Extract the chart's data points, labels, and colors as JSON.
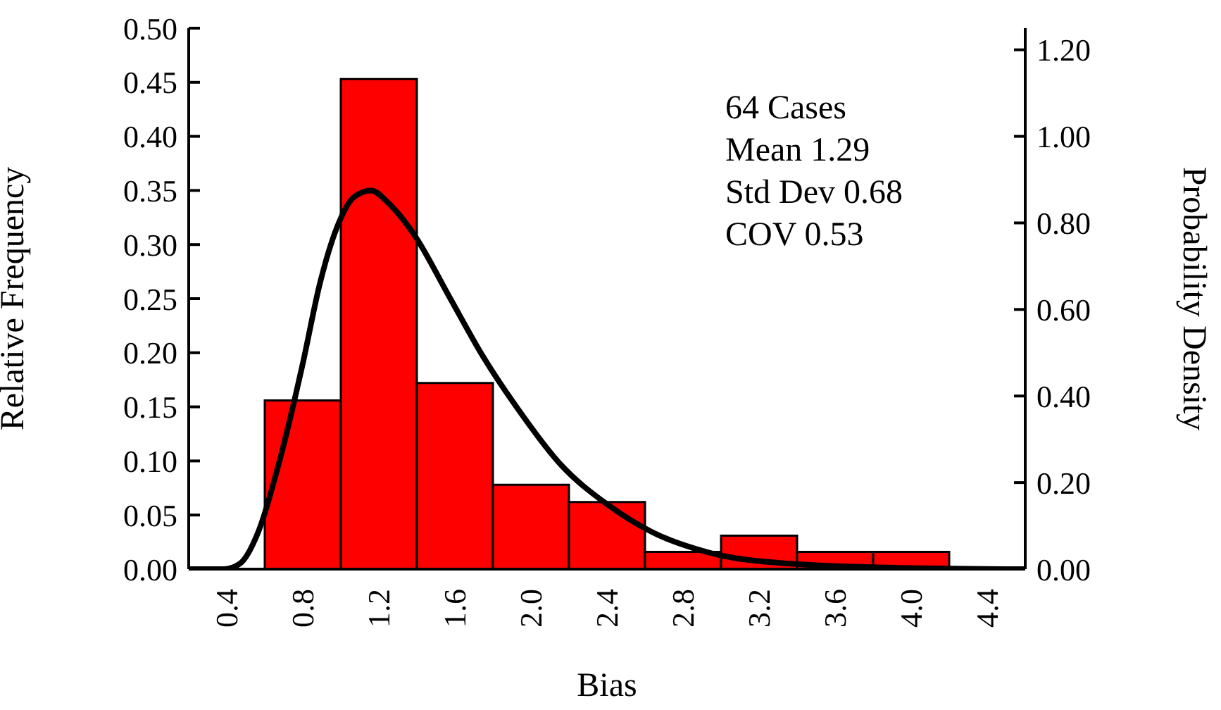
{
  "chart_data": {
    "type": "histogram",
    "xlabel": "Bias",
    "ylabel": "Relative Frequency",
    "y2label": "Probability Density",
    "bins": [
      0.6,
      1.0,
      1.4,
      1.8,
      2.2,
      2.6,
      3.0,
      3.4,
      3.8,
      4.2
    ],
    "values": [
      0.156,
      0.453,
      0.172,
      0.078,
      0.062,
      0.016,
      0.031,
      0.016,
      0.016
    ],
    "color": "#ff0000",
    "series": [
      {
        "type": "line",
        "axis": "y2",
        "color": "#000000",
        "x": [
          0.2,
          0.385,
          0.47,
          0.565,
          0.68,
          0.8,
          0.89,
          0.98,
          1.07,
          1.16,
          1.25,
          1.39,
          1.57,
          1.75,
          1.93,
          2.16,
          2.4,
          2.64,
          2.93,
          3.35,
          3.94,
          4.6
        ],
        "values": [
          0,
          0,
          0.013,
          0.085,
          0.254,
          0.475,
          0.66,
          0.79,
          0.86,
          0.875,
          0.846,
          0.77,
          0.63,
          0.49,
          0.371,
          0.24,
          0.15,
          0.085,
          0.039,
          0.013,
          0.003,
          0
        ]
      }
    ],
    "xlim": [
      0.2,
      4.6
    ],
    "xticks": [
      {
        "value": 0.4,
        "label": "0.4"
      },
      {
        "value": 0.8,
        "label": "0.8"
      },
      {
        "value": 1.2,
        "label": "1.2"
      },
      {
        "value": 1.6,
        "label": "1.6"
      },
      {
        "value": 2.0,
        "label": "2.0"
      },
      {
        "value": 2.4,
        "label": "2.4"
      },
      {
        "value": 2.8,
        "label": "2.8"
      },
      {
        "value": 3.2,
        "label": "3.2"
      },
      {
        "value": 3.6,
        "label": "3.6"
      },
      {
        "value": 4.0,
        "label": "4.0"
      },
      {
        "value": 4.4,
        "label": "4.4"
      }
    ],
    "ylim": [
      0,
      0.5
    ],
    "yticks": [
      {
        "value": 0,
        "label": "0.00"
      },
      {
        "value": 0.05,
        "label": "0.05"
      },
      {
        "value": 0.1,
        "label": "0.10"
      },
      {
        "value": 0.15,
        "label": "0.15"
      },
      {
        "value": 0.2,
        "label": "0.20"
      },
      {
        "value": 0.25,
        "label": "0.25"
      },
      {
        "value": 0.3,
        "label": "0.30"
      },
      {
        "value": 0.35,
        "label": "0.35"
      },
      {
        "value": 0.4,
        "label": "0.40"
      },
      {
        "value": 0.45,
        "label": "0.45"
      },
      {
        "value": 0.5,
        "label": "0.50"
      }
    ],
    "y2lim": [
      0,
      1.25
    ],
    "y2ticks": [
      {
        "value": 0,
        "label": "0.00"
      },
      {
        "value": 0.2,
        "label": "0.20"
      },
      {
        "value": 0.4,
        "label": "0.40"
      },
      {
        "value": 0.6,
        "label": "0.60"
      },
      {
        "value": 0.8,
        "label": "0.80"
      },
      {
        "value": 1.0,
        "label": "1.00"
      },
      {
        "value": 1.2,
        "label": "1.20"
      }
    ],
    "annotations": [
      "64 Cases",
      "Mean 1.29",
      "Std Dev 0.68",
      "COV 0.53"
    ],
    "grid": false,
    "legend": false,
    "marker": "none",
    "line_style": "solid"
  }
}
